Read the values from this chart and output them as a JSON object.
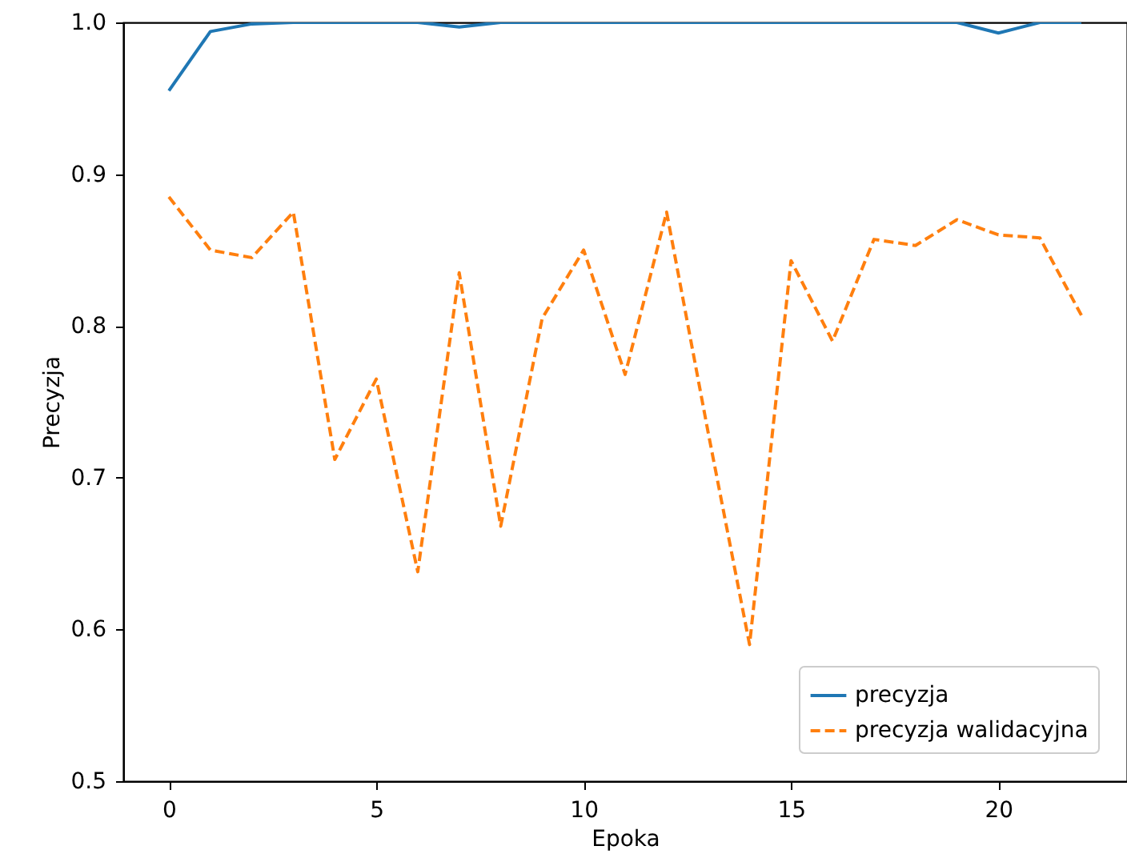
{
  "chart_data": {
    "type": "line",
    "xlabel": "Epoka",
    "ylabel": "Precyzja",
    "x": [
      0,
      1,
      2,
      3,
      4,
      5,
      6,
      7,
      8,
      9,
      10,
      11,
      12,
      13,
      14,
      15,
      16,
      17,
      18,
      19,
      20,
      21,
      22
    ],
    "series": [
      {
        "name": "precyzja",
        "color": "#1f77b4",
        "line_style": "solid",
        "values": [
          0.955,
          0.994,
          0.999,
          1.0,
          1.0,
          1.0,
          1.0,
          0.997,
          1.0,
          1.0,
          1.0,
          1.0,
          1.0,
          1.0,
          1.0,
          1.0,
          1.0,
          1.0,
          1.0,
          1.0,
          0.993,
          1.0,
          1.0
        ]
      },
      {
        "name": "precyzja walidacyjna",
        "color": "#ff7f0e",
        "line_style": "dashed",
        "values": [
          0.885,
          0.85,
          0.845,
          0.875,
          0.712,
          0.765,
          0.638,
          0.835,
          0.668,
          0.805,
          0.85,
          0.768,
          0.875,
          0.73,
          0.59,
          0.843,
          0.79,
          0.857,
          0.853,
          0.87,
          0.86,
          0.858,
          0.807
        ]
      }
    ],
    "xlim": [
      -1.1,
      23.1
    ],
    "xticks": [
      0,
      5,
      10,
      15,
      20
    ],
    "ylim": [
      0.5,
      1.0
    ],
    "yticks": [
      0.5,
      0.6,
      0.7,
      0.8,
      0.9,
      {
        "value": 1.0,
        "label": "1.0"
      }
    ],
    "legend": "bottom right"
  }
}
